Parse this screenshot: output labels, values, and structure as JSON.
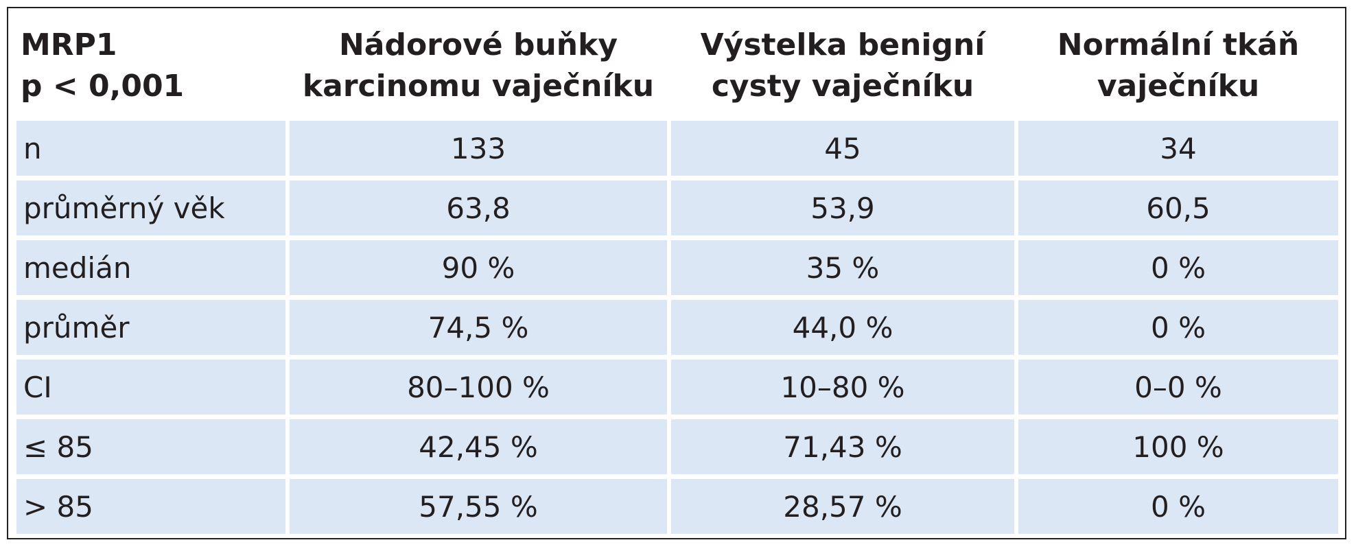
{
  "table": {
    "header": [
      [
        "MRP1",
        "p < 0,001"
      ],
      [
        "Nádorové buňky",
        "karcinomu vaječníku"
      ],
      [
        "Výstelka benigní",
        "cysty vaječníku"
      ],
      [
        "Normální tkáň",
        "vaječníku"
      ]
    ],
    "rows": [
      [
        "n",
        "133",
        "45",
        "34"
      ],
      [
        "průměrný věk",
        "63,8",
        "53,9",
        "60,5"
      ],
      [
        "medián",
        "90 %",
        "35 %",
        "0 %"
      ],
      [
        "průměr",
        "74,5 %",
        "44,0 %",
        "0 %"
      ],
      [
        "CI",
        "80–100 %",
        "10–80 %",
        "0–0 %"
      ],
      [
        "≤ 85",
        "42,45 %",
        "71,43 %",
        "100 %"
      ],
      [
        "> 85",
        "57,55 %",
        "28,57 %",
        "0 %"
      ]
    ]
  }
}
